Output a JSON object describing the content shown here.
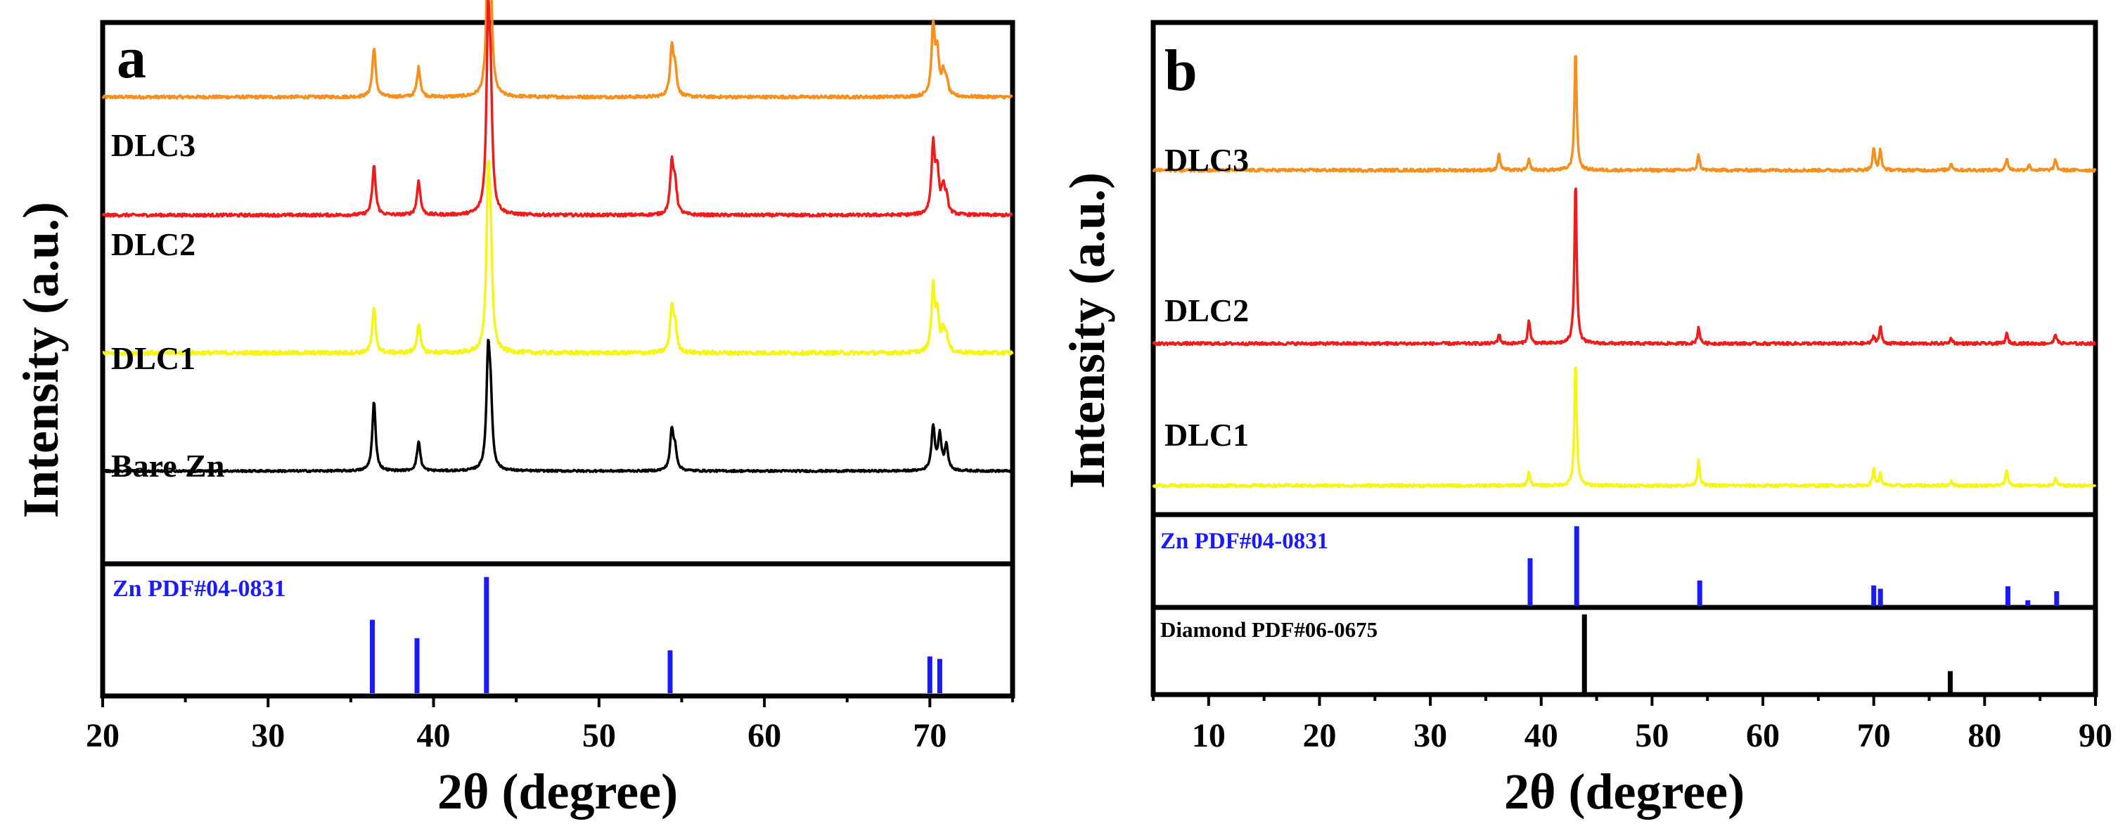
{
  "colors": {
    "frame": "#000000",
    "reference": "#1a1aff",
    "dlc3": "#f5901e",
    "dlc2": "#ee1c1c",
    "dlc1": "#f5f518",
    "bare_zn": "#000000",
    "diamond": "#000000"
  },
  "chart_data": [
    {
      "panel_label": "a",
      "type": "line",
      "xlabel": "2θ (degree)",
      "ylabel": "Intensity (a.u.)",
      "xlim": [
        20,
        75
      ],
      "xticks": [
        20,
        30,
        40,
        50,
        60,
        70
      ],
      "x_tick_labels": [
        "20",
        "30",
        "40",
        "50",
        "60",
        "70"
      ],
      "series": [
        {
          "name": "DLC3",
          "color_key": "dlc3",
          "baseline": 0.86,
          "noise": 0.003,
          "peaks": [
            [
              36.4,
              0.1
            ],
            [
              39.1,
              0.06
            ],
            [
              43.3,
              0.28
            ],
            [
              43.45,
              0.16
            ],
            [
              54.4,
              0.1
            ],
            [
              54.6,
              0.05
            ],
            [
              70.2,
              0.14
            ],
            [
              70.45,
              0.08
            ],
            [
              70.8,
              0.04
            ],
            [
              71.0,
              0.03
            ]
          ]
        },
        {
          "name": "DLC2",
          "color_key": "dlc2",
          "baseline": 0.62,
          "noise": 0.003,
          "peaks": [
            [
              36.4,
              0.1
            ],
            [
              39.1,
              0.07
            ],
            [
              43.3,
              0.36
            ],
            [
              43.45,
              0.2
            ],
            [
              54.4,
              0.1
            ],
            [
              54.6,
              0.06
            ],
            [
              70.2,
              0.14
            ],
            [
              70.45,
              0.08
            ],
            [
              70.8,
              0.05
            ],
            [
              71.0,
              0.03
            ]
          ]
        },
        {
          "name": "DLC1",
          "color_key": "dlc1",
          "baseline": 0.34,
          "noise": 0.004,
          "peaks": [
            [
              36.4,
              0.09
            ],
            [
              39.1,
              0.06
            ],
            [
              43.3,
              0.32
            ],
            [
              43.45,
              0.18
            ],
            [
              54.4,
              0.09
            ],
            [
              54.6,
              0.05
            ],
            [
              70.2,
              0.13
            ],
            [
              70.45,
              0.07
            ],
            [
              70.8,
              0.04
            ],
            [
              71.0,
              0.03
            ]
          ]
        },
        {
          "name": "Bare Zn",
          "color_key": "bare_zn",
          "baseline": 0.1,
          "noise": 0.002,
          "peaks": [
            [
              36.4,
              0.14
            ],
            [
              39.1,
              0.06
            ],
            [
              43.3,
              0.22
            ],
            [
              43.45,
              0.12
            ],
            [
              54.4,
              0.08
            ],
            [
              54.6,
              0.04
            ],
            [
              70.2,
              0.09
            ],
            [
              70.6,
              0.07
            ],
            [
              71.0,
              0.05
            ]
          ]
        }
      ],
      "reference_patterns": [
        {
          "name": "Zn PDF#04-0831",
          "color_key": "reference",
          "lines": [
            [
              36.3,
              0.6
            ],
            [
              39.0,
              0.45
            ],
            [
              43.2,
              0.95
            ],
            [
              54.3,
              0.35
            ],
            [
              70.0,
              0.3
            ],
            [
              70.6,
              0.28
            ]
          ]
        }
      ]
    },
    {
      "panel_label": "b",
      "type": "line",
      "xlabel": "2θ (degree)",
      "ylabel": "Intensity (a.u.)",
      "xlim": [
        5,
        90
      ],
      "xticks": [
        10,
        20,
        30,
        40,
        50,
        60,
        70,
        80,
        90
      ],
      "x_tick_labels": [
        "10",
        "20",
        "30",
        "40",
        "50",
        "60",
        "70",
        "80",
        "90"
      ],
      "series": [
        {
          "name": "DLC3",
          "color_key": "dlc3",
          "baseline": 0.705,
          "noise": 0.003,
          "peaks": [
            [
              36.2,
              0.035
            ],
            [
              38.9,
              0.022
            ],
            [
              43.1,
              0.25
            ],
            [
              54.2,
              0.032
            ],
            [
              70.0,
              0.045
            ],
            [
              70.6,
              0.042
            ],
            [
              77.0,
              0.015
            ],
            [
              82.0,
              0.025
            ],
            [
              84.0,
              0.012
            ],
            [
              86.4,
              0.022
            ]
          ]
        },
        {
          "name": "DLC2",
          "color_key": "dlc2",
          "baseline": 0.345,
          "noise": 0.003,
          "peaks": [
            [
              36.2,
              0.02
            ],
            [
              38.9,
              0.05
            ],
            [
              43.1,
              0.34
            ],
            [
              54.2,
              0.035
            ],
            [
              70.0,
              0.015
            ],
            [
              70.6,
              0.035
            ],
            [
              77.0,
              0.012
            ],
            [
              82.0,
              0.02
            ],
            [
              86.4,
              0.02
            ]
          ]
        },
        {
          "name": "DLC1",
          "color_key": "dlc1",
          "baseline": 0.05,
          "noise": 0.003,
          "peaks": [
            [
              38.9,
              0.03
            ],
            [
              43.1,
              0.26
            ],
            [
              54.2,
              0.055
            ],
            [
              70.0,
              0.035
            ],
            [
              70.6,
              0.025
            ],
            [
              77.0,
              0.01
            ],
            [
              82.0,
              0.033
            ],
            [
              86.4,
              0.015
            ]
          ]
        }
      ],
      "reference_patterns": [
        {
          "name": "Zn PDF#04-0831",
          "color_key": "reference",
          "lines": [
            [
              39.0,
              0.58
            ],
            [
              43.2,
              0.97
            ],
            [
              54.3,
              0.31
            ],
            [
              70.0,
              0.25
            ],
            [
              70.6,
              0.21
            ],
            [
              82.1,
              0.24
            ],
            [
              83.9,
              0.07
            ],
            [
              86.5,
              0.18
            ]
          ]
        },
        {
          "name": "Diamond PDF#06-0675",
          "color_key": "diamond",
          "lines": [
            [
              43.9,
              1.0
            ],
            [
              76.9,
              0.28
            ]
          ]
        }
      ]
    }
  ]
}
